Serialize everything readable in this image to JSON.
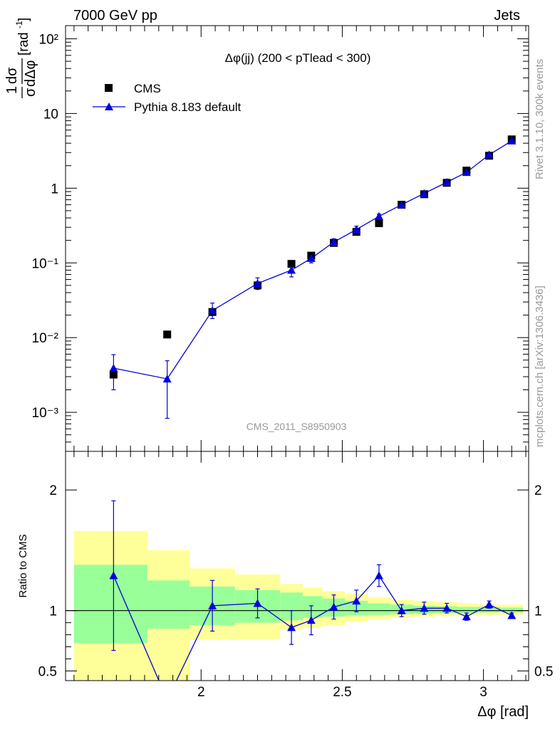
{
  "header": {
    "energy_label": "7000 GeV pp",
    "process_label": "Jets",
    "side_label_top": "Rivet 3.1.10,  300k events",
    "side_label_bottom": "mcplots.cern.ch [arXiv:1306.3436]"
  },
  "chart_data": [
    {
      "type": "scatter",
      "title": "Δφ(jj) (200 < pTlead <  300)",
      "watermark": "CMS_2011_S8950903",
      "ylabel": "1/σ dσ/dΔφ [rad⁻¹]",
      "yscale": "log",
      "xlim": [
        1.52,
        3.16
      ],
      "ylim": [
        0.0003,
        150
      ],
      "ytick_labels": [
        "10²",
        "10",
        "1",
        "10⁻¹",
        "10⁻²",
        "10⁻³"
      ],
      "legend": {
        "placement": "top-left",
        "entries": [
          "CMS",
          "Pythia 8.183 default"
        ]
      },
      "series": [
        {
          "name": "CMS",
          "color": "#000000",
          "marker": "square",
          "x": [
            1.69,
            1.88,
            2.04,
            2.2,
            2.32,
            2.39,
            2.47,
            2.55,
            2.63,
            2.71,
            2.79,
            2.87,
            2.94,
            3.02,
            3.1
          ],
          "y": [
            0.0032,
            0.011,
            0.022,
            0.05,
            0.097,
            0.125,
            0.185,
            0.26,
            0.34,
            0.6,
            0.83,
            1.18,
            1.72,
            2.72,
            4.5
          ]
        },
        {
          "name": "Pythia 8.183 default",
          "color": "#0000dd",
          "marker": "triangle",
          "x": [
            1.69,
            1.88,
            2.04,
            2.2,
            2.32,
            2.39,
            2.47,
            2.55,
            2.63,
            2.71,
            2.79,
            2.87,
            2.94,
            3.02,
            3.1
          ],
          "y": [
            0.0039,
            0.0028,
            0.023,
            0.053,
            0.08,
            0.115,
            0.19,
            0.28,
            0.42,
            0.6,
            0.85,
            1.2,
            1.63,
            2.8,
            4.3
          ],
          "yerr_low": [
            0.0019,
            0.00197,
            0.005,
            0.009,
            0.015,
            0.015,
            0.02,
            0.03,
            0.03,
            0.03,
            0.04,
            0.05,
            0.08,
            0.12,
            0.15
          ],
          "yerr_high": [
            0.002,
            0.0021,
            0.006,
            0.01,
            0.016,
            0.015,
            0.02,
            0.03,
            0.03,
            0.03,
            0.04,
            0.05,
            0.08,
            0.12,
            0.15
          ]
        }
      ]
    },
    {
      "type": "line",
      "ylabel": "Ratio to CMS",
      "xlabel": "Δφ [rad]",
      "xlim": [
        1.52,
        3.16
      ],
      "ylim": [
        0.42,
        2.32
      ],
      "ytick_labels": [
        "2",
        "1",
        "0.5"
      ],
      "xtick_labels": [
        "2",
        "2.5",
        "3"
      ],
      "reference_line": 1,
      "bands": {
        "edges": [
          1.55,
          1.81,
          1.96,
          2.12,
          2.28,
          2.36,
          2.43,
          2.51,
          2.59,
          2.67,
          2.75,
          2.83,
          2.91,
          2.98,
          3.06,
          3.14
        ],
        "yellow_low": [
          0.31,
          0.42,
          0.76,
          0.76,
          0.84,
          0.86,
          0.88,
          0.91,
          0.93,
          0.94,
          0.95,
          0.955,
          0.96,
          0.965,
          0.965
        ],
        "yellow_high": [
          1.66,
          1.5,
          1.35,
          1.3,
          1.22,
          1.19,
          1.16,
          1.14,
          1.11,
          1.09,
          1.08,
          1.07,
          1.06,
          1.05,
          1.05
        ],
        "green_low": [
          0.73,
          0.85,
          0.88,
          0.9,
          0.92,
          0.94,
          0.95,
          0.96,
          0.965,
          0.97,
          0.975,
          0.98,
          0.98,
          0.985,
          0.985
        ],
        "green_high": [
          1.38,
          1.25,
          1.2,
          1.17,
          1.15,
          1.12,
          1.1,
          1.08,
          1.06,
          1.05,
          1.04,
          1.035,
          1.03,
          1.03,
          1.025
        ],
        "yellow_color": "#ffff99",
        "green_color": "#99ff99"
      },
      "series": [
        {
          "name": "Pythia 8.183 default",
          "color": "#0000dd",
          "x": [
            1.69,
            1.88,
            2.04,
            2.2,
            2.32,
            2.39,
            2.47,
            2.55,
            2.63,
            2.71,
            2.79,
            2.87,
            2.94,
            3.02,
            3.1
          ],
          "y": [
            1.29,
            0.26,
            1.04,
            1.06,
            0.86,
            0.92,
            1.03,
            1.08,
            1.29,
            1.0,
            1.02,
            1.02,
            0.95,
            1.05,
            0.96
          ],
          "yerr": [
            0.62,
            0.1,
            0.21,
            0.12,
            0.14,
            0.12,
            0.1,
            0.09,
            0.09,
            0.05,
            0.05,
            0.04,
            0.03,
            0.03,
            0.02
          ]
        }
      ]
    }
  ]
}
